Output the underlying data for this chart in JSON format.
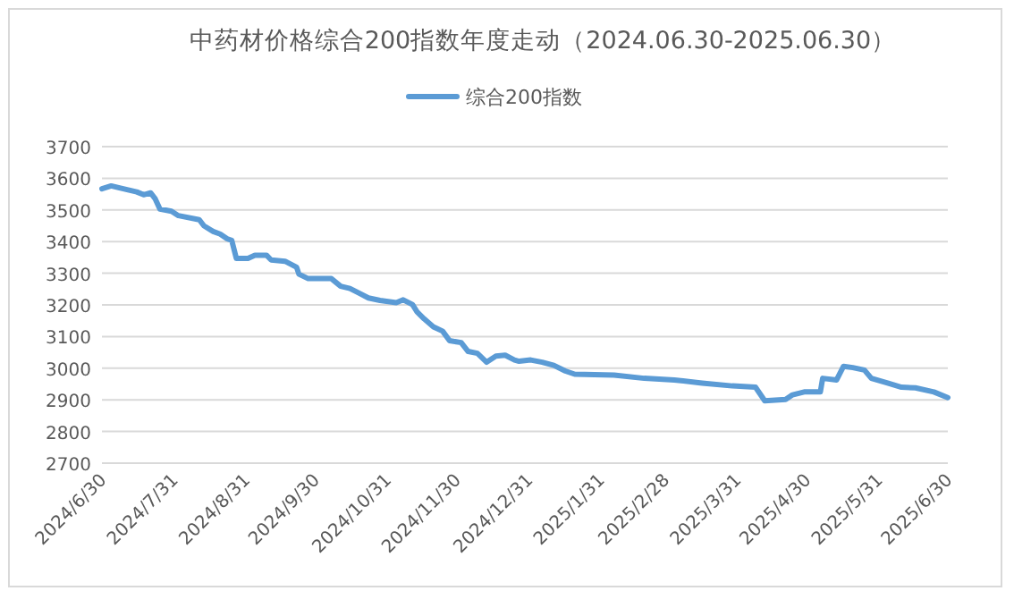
{
  "chart_data": {
    "type": "line",
    "title": "中药材价格综合200指数年度走动（2024.06.30-2025.06.30）",
    "xlim": [
      "2024-06-30",
      "2025-06-30"
    ],
    "xticks": [
      {
        "value": "2024-06-30",
        "label": "2024/6/30"
      },
      {
        "value": "2024-07-31",
        "label": "2024/7/31"
      },
      {
        "value": "2024-08-31",
        "label": "2024/8/31"
      },
      {
        "value": "2024-09-30",
        "label": "2024/9/30"
      },
      {
        "value": "2024-10-31",
        "label": "2024/10/31"
      },
      {
        "value": "2024-11-30",
        "label": "2024/11/30"
      },
      {
        "value": "2024-12-31",
        "label": "2024/12/31"
      },
      {
        "value": "2025-01-31",
        "label": "2025/1/31"
      },
      {
        "value": "2025-02-28",
        "label": "2025/2/28"
      },
      {
        "value": "2025-03-31",
        "label": "2025/3/31"
      },
      {
        "value": "2025-04-30",
        "label": "2025/4/30"
      },
      {
        "value": "2025-05-31",
        "label": "2025/5/31"
      },
      {
        "value": "2025-06-30",
        "label": "2025/6/30"
      }
    ],
    "ylim": [
      2700,
      3700
    ],
    "yticks": [
      2700,
      2800,
      2900,
      3000,
      3100,
      3200,
      3300,
      3400,
      3500,
      3600,
      3700
    ],
    "grid": "y",
    "legend": "top",
    "marker": "none",
    "line_style": "solid",
    "series": [
      {
        "name": "综合200指数",
        "color": "#5b9bd5",
        "x": [
          "2024-06-30",
          "2024-07-04",
          "2024-07-08",
          "2024-07-15",
          "2024-07-18",
          "2024-07-21",
          "2024-07-23",
          "2024-07-25",
          "2024-07-30",
          "2024-08-02",
          "2024-08-11",
          "2024-08-13",
          "2024-08-17",
          "2024-08-20",
          "2024-08-23",
          "2024-08-25",
          "2024-08-27",
          "2024-09-01",
          "2024-09-04",
          "2024-09-09",
          "2024-09-11",
          "2024-09-17",
          "2024-09-22",
          "2024-09-23",
          "2024-09-27",
          "2024-10-07",
          "2024-10-11",
          "2024-10-15",
          "2024-10-19",
          "2024-10-23",
          "2024-10-28",
          "2024-11-04",
          "2024-11-07",
          "2024-11-11",
          "2024-11-13",
          "2024-11-16",
          "2024-11-20",
          "2024-11-24",
          "2024-11-27",
          "2024-12-02",
          "2024-12-05",
          "2024-12-09",
          "2024-12-13",
          "2024-12-17",
          "2024-12-21",
          "2024-12-25",
          "2024-12-27",
          "2025-01-01",
          "2025-01-06",
          "2025-01-11",
          "2025-01-16",
          "2025-01-20",
          "2025-02-06",
          "2025-02-19",
          "2025-03-04",
          "2025-03-16",
          "2025-03-29",
          "2025-04-08",
          "2025-04-12",
          "2025-04-21",
          "2025-04-24",
          "2025-04-29",
          "2025-05-06",
          "2025-05-07",
          "2025-05-13",
          "2025-05-16",
          "2025-05-20",
          "2025-05-25",
          "2025-05-28",
          "2025-06-04",
          "2025-06-10",
          "2025-06-16",
          "2025-06-24",
          "2025-06-30"
        ],
        "values": [
          3567,
          3576,
          3569,
          3557,
          3548,
          3554,
          3535,
          3503,
          3496,
          3482,
          3469,
          3450,
          3432,
          3424,
          3409,
          3404,
          3347,
          3347,
          3357,
          3357,
          3342,
          3338,
          3319,
          3297,
          3283,
          3283,
          3259,
          3252,
          3237,
          3222,
          3214,
          3207,
          3216,
          3201,
          3178,
          3156,
          3131,
          3117,
          3087,
          3081,
          3053,
          3047,
          3019,
          3038,
          3041,
          3026,
          3022,
          3026,
          3019,
          3009,
          2991,
          2981,
          2978,
          2968,
          2963,
          2953,
          2944,
          2940,
          2897,
          2901,
          2916,
          2925,
          2925,
          2968,
          2963,
          3006,
          3002,
          2994,
          2968,
          2953,
          2940,
          2938,
          2925,
          2907
        ]
      }
    ]
  }
}
